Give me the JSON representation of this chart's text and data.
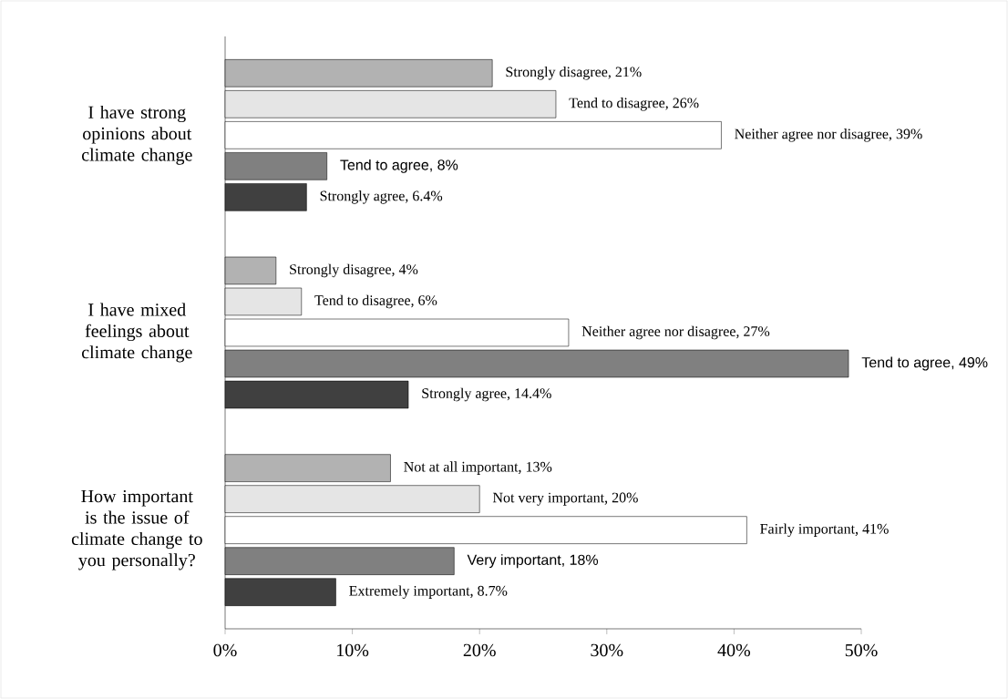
{
  "chart_data": {
    "type": "bar",
    "orientation": "horizontal",
    "categories": [
      "I have strong opinions about climate change",
      "I have mixed feelings about climate change",
      "How important is the issue of climate change to you personally?"
    ],
    "series": [
      {
        "color": "#000000",
        "values": [
          21,
          4,
          13
        ],
        "value_labels": [
          "Strongly disagree, 21%",
          "Strongly disagree, 4%",
          "Not at all important, 13%"
        ]
      },
      {
        "color": "#000000",
        "values": [
          26,
          6,
          20
        ],
        "value_labels": [
          "Tend to disagree, 26%",
          "Tend to disagree, 6%",
          "Not very important, 20%"
        ]
      },
      {
        "color": "#000000",
        "values": [
          39,
          27,
          41
        ],
        "value_labels": [
          "Neither agree nor disagree, 39%",
          "Neither agree nor disagree, 27%",
          "Fairly important, 41%"
        ]
      },
      {
        "color": "#000000",
        "values": [
          8,
          49,
          18
        ],
        "value_labels": [
          "Tend to agree, 8%",
          "Tend to agree, 49%",
          "Very important, 18%"
        ]
      },
      {
        "color": "#000000",
        "values": [
          6.4,
          14.4,
          8.7
        ],
        "value_labels": [
          "Strongly agree, 6.4%",
          "Strongly agree, 14.4%",
          "Extremely important, 8.7%"
        ]
      }
    ],
    "xlim": [
      0,
      50
    ],
    "xticks": [
      {
        "value": 0,
        "label": "0%"
      },
      {
        "value": 10,
        "label": "10%"
      },
      {
        "value": 20,
        "label": "20%"
      },
      {
        "value": 30,
        "label": "30%"
      },
      {
        "value": 40,
        "label": "40%"
      },
      {
        "value": 50,
        "label": "50%"
      }
    ]
  }
}
